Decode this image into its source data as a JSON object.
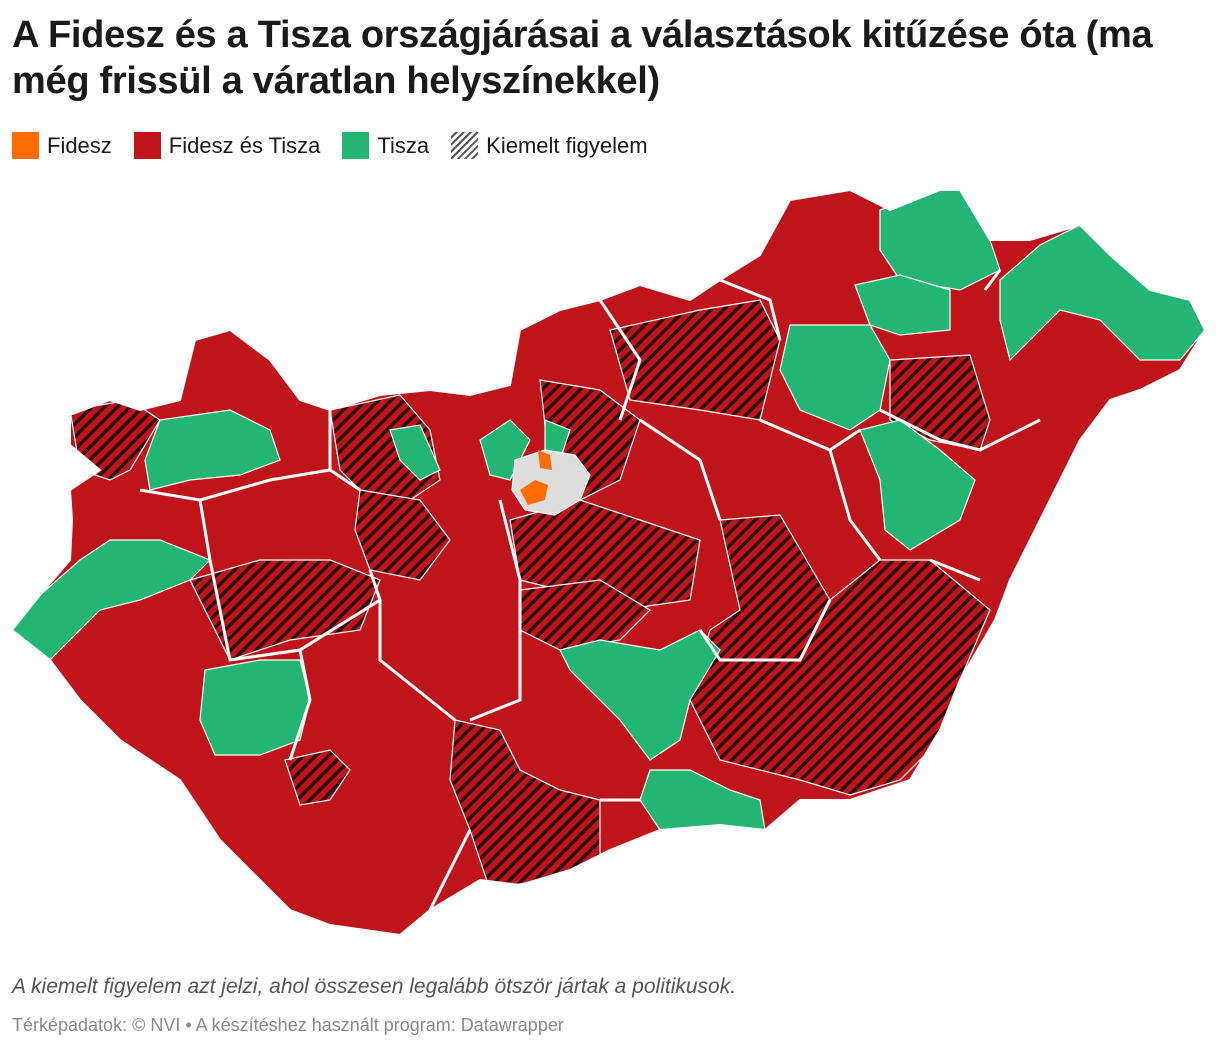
{
  "title": "A Fidesz és a Tisza országjárásai a választások kitűzése óta (ma még frissül a váratlan helyszínekkel)",
  "legend": [
    {
      "label": "Fidesz",
      "color": "#ff6c00"
    },
    {
      "label": "Fidesz és Tisza",
      "color": "#c0141b"
    },
    {
      "label": "Tisza",
      "color": "#22b573"
    },
    {
      "label": "Kiemelt figyelem",
      "pattern": "hatched"
    }
  ],
  "note": "A kiemelt figyelem azt jelzi, ahol összesen legalább ötször jártak a politikusok.",
  "credit": "Térképadatok: © NVI  • A készítéshez használt program: Datawrapper",
  "colors": {
    "fidesz": "#ff6c00",
    "both": "#c0141b",
    "tisza": "#22b573",
    "border": "#ffffff",
    "budapest": "#dddddd"
  }
}
